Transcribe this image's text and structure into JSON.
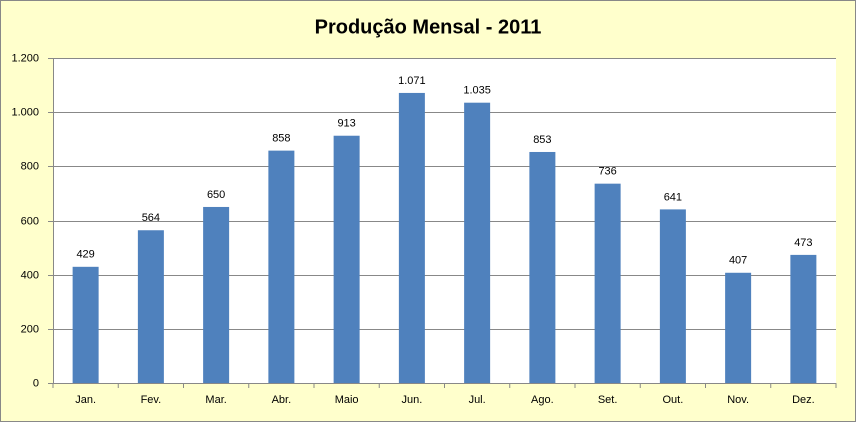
{
  "chart_data": {
    "type": "bar",
    "title": "Produção Mensal - 2011",
    "categories": [
      "Jan.",
      "Fev.",
      "Mar.",
      "Abr.",
      "Maio",
      "Jun.",
      "Jul.",
      "Ago.",
      "Set.",
      "Out.",
      "Nov.",
      "Dez."
    ],
    "values": [
      429,
      564,
      650,
      858,
      913,
      1071,
      1035,
      853,
      736,
      641,
      407,
      473
    ],
    "value_labels": [
      "429",
      "564",
      "650",
      "858",
      "913",
      "1.071",
      "1.035",
      "853",
      "736",
      "641",
      "407",
      "473"
    ],
    "color": "#4f81bd",
    "ylim": [
      0,
      1200
    ],
    "yticks": [
      0,
      200,
      400,
      600,
      800,
      {
        "value": 1000,
        "label": "1.000"
      },
      {
        "value": 1200,
        "label": "1.200"
      }
    ],
    "grid": true
  }
}
